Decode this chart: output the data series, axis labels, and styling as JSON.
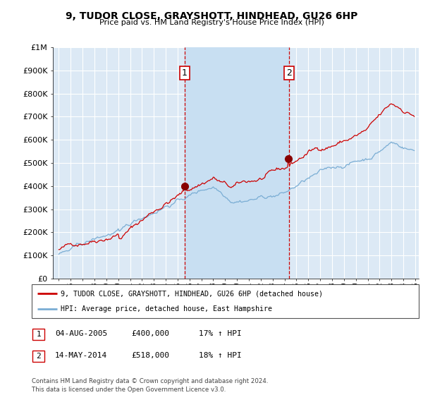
{
  "title": "9, TUDOR CLOSE, GRAYSHOTT, HINDHEAD, GU26 6HP",
  "subtitle": "Price paid vs. HM Land Registry's House Price Index (HPI)",
  "background_color": "#ffffff",
  "plot_bg_color": "#dce9f5",
  "grid_color": "#ffffff",
  "ylim": [
    0,
    1000000
  ],
  "yticks": [
    0,
    100000,
    200000,
    300000,
    400000,
    500000,
    600000,
    700000,
    800000,
    900000,
    1000000
  ],
  "ytick_labels": [
    "£0",
    "£100K",
    "£200K",
    "£300K",
    "£400K",
    "£500K",
    "£600K",
    "£700K",
    "£800K",
    "£900K",
    "£1M"
  ],
  "xlim_start": 1995,
  "xlim_end": 2025,
  "xticks": [
    1995,
    1996,
    1997,
    1998,
    1999,
    2000,
    2001,
    2002,
    2003,
    2004,
    2005,
    2006,
    2007,
    2008,
    2009,
    2010,
    2011,
    2012,
    2013,
    2014,
    2015,
    2016,
    2017,
    2018,
    2019,
    2020,
    2021,
    2022,
    2023,
    2024,
    2025
  ],
  "red_line_color": "#cc0000",
  "blue_line_color": "#7aadd4",
  "highlight_color": "#c8dff2",
  "marker_color": "#880000",
  "vline1_x": 2005.58,
  "vline2_x": 2014.37,
  "marker1_x": 2005.58,
  "marker1_y": 400000,
  "marker2_x": 2014.37,
  "marker2_y": 518000,
  "legend_label_red": "9, TUDOR CLOSE, GRAYSHOTT, HINDHEAD, GU26 6HP (detached house)",
  "legend_label_blue": "HPI: Average price, detached house, East Hampshire",
  "table_rows": [
    {
      "num": "1",
      "date": "04-AUG-2005",
      "price": "£400,000",
      "hpi": "17% ↑ HPI"
    },
    {
      "num": "2",
      "date": "14-MAY-2014",
      "price": "£518,000",
      "hpi": "18% ↑ HPI"
    }
  ],
  "footer": "Contains HM Land Registry data © Crown copyright and database right 2024.\nThis data is licensed under the Open Government Licence v3.0."
}
